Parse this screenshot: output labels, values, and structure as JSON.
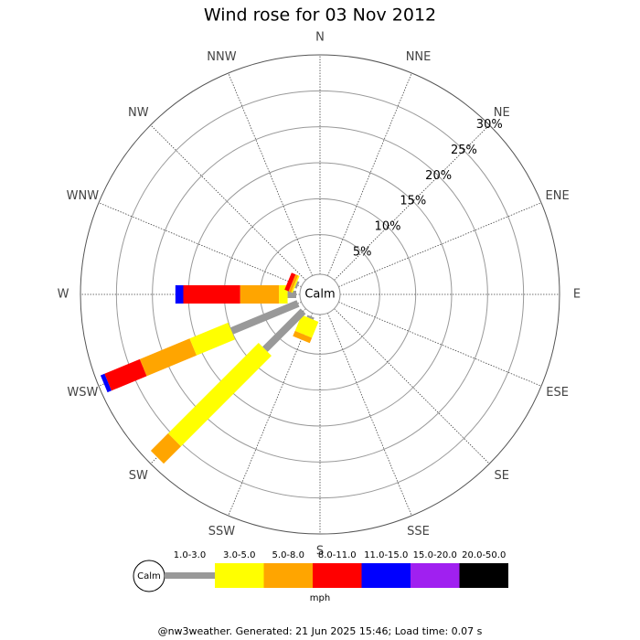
{
  "chart_data": {
    "type": "windrose",
    "title": "Wind rose for 03 Nov 2012",
    "categories": [
      "N",
      "NNE",
      "NE",
      "ENE",
      "E",
      "ESE",
      "SE",
      "SSE",
      "S",
      "SSW",
      "SW",
      "WSW",
      "W",
      "WNW",
      "NW",
      "NNW"
    ],
    "series": [
      {
        "name": "1.0-3.0",
        "color": "#999999",
        "values": [
          0,
          0,
          0,
          0,
          0,
          0,
          0,
          0,
          0,
          0.3,
          7.5,
          10.0,
          1.2,
          0.3,
          0,
          0
        ]
      },
      {
        "name": "3.0-5.0",
        "color": "#ffff00",
        "values": [
          0,
          0,
          0,
          0,
          0,
          0,
          0,
          0,
          0,
          2.4,
          17.8,
          5.8,
          1.2,
          0.2,
          0,
          0
        ]
      },
      {
        "name": "5.0-8.0",
        "color": "#ffa500",
        "values": [
          0,
          0,
          0,
          0,
          0,
          0,
          0,
          0,
          0,
          0.8,
          3.4,
          7.5,
          5.4,
          0.4,
          0,
          0
        ]
      },
      {
        "name": "8.0-11.0",
        "color": "#ff0000",
        "values": [
          0,
          0,
          0,
          0,
          0,
          0,
          0,
          0,
          0,
          0,
          0,
          5.3,
          7.9,
          0.6,
          0,
          0
        ]
      },
      {
        "name": "11.0-15.0",
        "color": "#0000ff",
        "values": [
          0,
          0,
          0,
          0,
          0,
          0,
          0,
          0,
          0,
          0,
          0,
          0.6,
          1.1,
          0,
          0,
          0
        ]
      },
      {
        "name": "15.0-20.0",
        "color": "#a020f0",
        "values": [
          0,
          0,
          0,
          0,
          0,
          0,
          0,
          0,
          0,
          0,
          0,
          0,
          0,
          0,
          0,
          0
        ]
      },
      {
        "name": "20.0-50.0",
        "color": "#000000",
        "values": [
          0,
          0,
          0,
          0,
          0,
          0,
          0,
          0,
          0,
          0,
          0,
          0,
          0,
          0,
          0,
          0
        ]
      }
    ],
    "rlim": [
      0,
      30
    ],
    "rticks": [
      {
        "value": 5,
        "label": "5%"
      },
      {
        "value": 10,
        "label": "10%"
      },
      {
        "value": 15,
        "label": "15%"
      },
      {
        "value": 20,
        "label": "20%"
      },
      {
        "value": 25,
        "label": "25%"
      },
      {
        "value": 30,
        "label": "30%"
      }
    ],
    "calm_label": "Calm",
    "legend_unit": "mph",
    "footer": "@nw3weather. Generated: 21 Jun 2025 15:46; Load time: 0.07 s"
  }
}
